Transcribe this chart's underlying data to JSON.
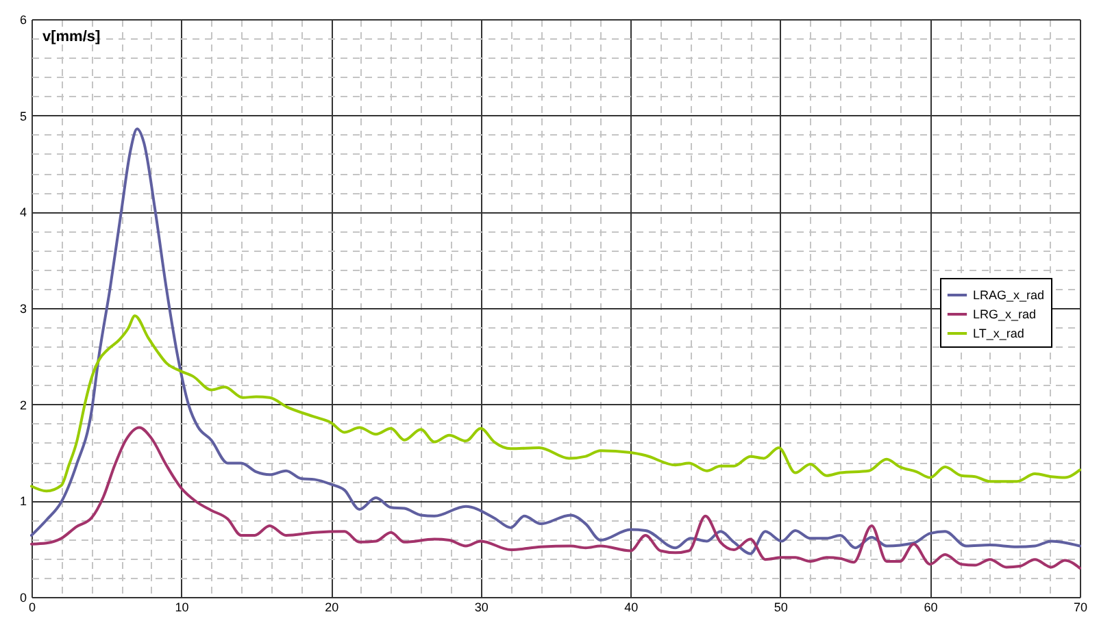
{
  "chart_data": {
    "type": "line",
    "ylabel": "v[mm/s]",
    "xlim": [
      0,
      70
    ],
    "ylim": [
      0,
      6
    ],
    "xticks": [
      0,
      {
        "value": 2,
        "label": null
      },
      {
        "value": 4,
        "label": null
      },
      {
        "value": 6,
        "label": null
      },
      {
        "value": 8,
        "label": null
      },
      10,
      {
        "value": 12,
        "label": null
      },
      {
        "value": 14,
        "label": null
      },
      {
        "value": 16,
        "label": null
      },
      {
        "value": 18,
        "label": null
      },
      20,
      {
        "value": 22,
        "label": null
      },
      {
        "value": 24,
        "label": null
      },
      {
        "value": 26,
        "label": null
      },
      {
        "value": 28,
        "label": null
      },
      30,
      {
        "value": 32,
        "label": null
      },
      {
        "value": 34,
        "label": null
      },
      {
        "value": 36,
        "label": null
      },
      {
        "value": 38,
        "label": null
      },
      40,
      {
        "value": 42,
        "label": null
      },
      {
        "value": 44,
        "label": null
      },
      {
        "value": 46,
        "label": null
      },
      {
        "value": 48,
        "label": null
      },
      50,
      {
        "value": 52,
        "label": null
      },
      {
        "value": 54,
        "label": null
      },
      {
        "value": 56,
        "label": null
      },
      {
        "value": 58,
        "label": null
      },
      60,
      {
        "value": 62,
        "label": null
      },
      {
        "value": 64,
        "label": null
      },
      {
        "value": 66,
        "label": null
      },
      {
        "value": 68,
        "label": null
      },
      70
    ],
    "yticks": [
      0,
      {
        "value": 0.2,
        "label": null
      },
      {
        "value": 0.4,
        "label": null
      },
      {
        "value": 0.6,
        "label": null
      },
      {
        "value": 0.8,
        "label": null
      },
      1,
      {
        "value": 1.2,
        "label": null
      },
      {
        "value": 1.4,
        "label": null
      },
      {
        "value": 1.6,
        "label": null
      },
      {
        "value": 1.8,
        "label": null
      },
      2,
      {
        "value": 2.2,
        "label": null
      },
      {
        "value": 2.4,
        "label": null
      },
      {
        "value": 2.6,
        "label": null
      },
      {
        "value": 2.8,
        "label": null
      },
      3,
      {
        "value": 3.2,
        "label": null
      },
      {
        "value": 3.4,
        "label": null
      },
      {
        "value": 3.6,
        "label": null
      },
      {
        "value": 3.8,
        "label": null
      },
      4,
      {
        "value": 4.2,
        "label": null
      },
      {
        "value": 4.4,
        "label": null
      },
      {
        "value": 4.6,
        "label": null
      },
      {
        "value": 4.8,
        "label": null
      },
      5,
      {
        "value": 5.2,
        "label": null
      },
      {
        "value": 5.4,
        "label": null
      },
      {
        "value": 5.6,
        "label": null
      },
      {
        "value": 5.8,
        "label": null
      },
      6
    ],
    "grid": true,
    "legend": "right",
    "line_style": "solid",
    "series": [
      {
        "name": "LRAG_x_rad",
        "color": "#5f5fa0",
        "x": [
          0,
          1,
          2,
          3,
          4,
          4.5,
          5.25,
          6,
          6.6,
          7.05,
          7.5,
          8.26,
          9,
          9.76,
          10.5,
          11.1,
          12,
          13.1,
          14,
          15,
          15.9,
          17,
          18,
          18.9,
          20,
          20.9,
          21.9,
          23,
          24,
          24.9,
          26,
          26.9,
          29,
          30.9,
          32,
          32.9,
          34,
          36,
          37,
          38,
          40,
          41,
          43,
          44,
          45.1,
          46,
          46.9,
          48,
          49,
          50.1,
          51,
          52,
          53.1,
          54,
          55,
          56.1,
          57.1,
          58.9,
          60,
          61,
          62.4,
          64,
          65.8,
          67,
          68.1,
          70
        ],
        "values": [
          0.64,
          0.8,
          0.99,
          1.37,
          1.92,
          2.5,
          3.21,
          4.01,
          4.63,
          4.86,
          4.72,
          4.01,
          3.21,
          2.5,
          1.99,
          1.77,
          1.63,
          1.39,
          1.39,
          1.3,
          1.27,
          1.31,
          1.23,
          1.22,
          1.17,
          1.11,
          0.91,
          1.03,
          0.93,
          0.92,
          0.85,
          0.84,
          0.94,
          0.82,
          0.72,
          0.84,
          0.76,
          0.85,
          0.76,
          0.59,
          0.7,
          0.69,
          0.51,
          0.61,
          0.58,
          0.68,
          0.57,
          0.45,
          0.68,
          0.58,
          0.69,
          0.61,
          0.61,
          0.64,
          0.51,
          0.62,
          0.53,
          0.56,
          0.66,
          0.68,
          0.53,
          0.54,
          0.52,
          0.53,
          0.58,
          0.53
        ]
      },
      {
        "name": "LRG_x_rad",
        "color": "#a3336b",
        "x": [
          0,
          1,
          2,
          3,
          4,
          4.8,
          5.56,
          6.3,
          7.2,
          8,
          9,
          10,
          11,
          12,
          13.1,
          14,
          14.9,
          15.9,
          17,
          18.9,
          20.9,
          21.9,
          23,
          24,
          24.9,
          26.9,
          27.9,
          29,
          30,
          32,
          34,
          36,
          37,
          38,
          40,
          41,
          42,
          43,
          43.9,
          45,
          46,
          46.9,
          48,
          49,
          50.1,
          51,
          52,
          53.1,
          54,
          54.9,
          56.1,
          57.1,
          58,
          58.9,
          60,
          61,
          62.1,
          63,
          64,
          65.1,
          66,
          67,
          68.1,
          69,
          70
        ],
        "values": [
          0.55,
          0.56,
          0.61,
          0.73,
          0.82,
          1.04,
          1.37,
          1.63,
          1.76,
          1.65,
          1.37,
          1.13,
          0.99,
          0.9,
          0.81,
          0.64,
          0.64,
          0.74,
          0.64,
          0.67,
          0.68,
          0.57,
          0.58,
          0.67,
          0.57,
          0.6,
          0.59,
          0.53,
          0.58,
          0.49,
          0.52,
          0.53,
          0.51,
          0.53,
          0.48,
          0.64,
          0.48,
          0.46,
          0.48,
          0.84,
          0.57,
          0.49,
          0.6,
          0.39,
          0.41,
          0.41,
          0.37,
          0.41,
          0.4,
          0.36,
          0.74,
          0.37,
          0.37,
          0.55,
          0.34,
          0.44,
          0.34,
          0.33,
          0.39,
          0.31,
          0.32,
          0.39,
          0.31,
          0.38,
          0.3
        ]
      },
      {
        "name": "LT_x_rad",
        "color": "#99cc00",
        "x": [
          0,
          1,
          2,
          2.5,
          3,
          3.6,
          4,
          4.5,
          5.1,
          5.86,
          6.46,
          6.9,
          7.8,
          8.4,
          9,
          9.9,
          10.8,
          12,
          12.9,
          14.1,
          15,
          15.9,
          17.1,
          18.9,
          20,
          20.9,
          21.9,
          23,
          24,
          24.9,
          26,
          26.9,
          27.9,
          29,
          30,
          30.9,
          32,
          33.9,
          35.9,
          37,
          38,
          40,
          41,
          43,
          43.9,
          45.1,
          46,
          46.9,
          48,
          48.9,
          49.9,
          51,
          52,
          53.1,
          54,
          55.9,
          57.1,
          58,
          59.1,
          60,
          61,
          62.1,
          63,
          64,
          65.8,
          67,
          68.1,
          69,
          70
        ],
        "values": [
          1.15,
          1.1,
          1.16,
          1.37,
          1.6,
          2.03,
          2.27,
          2.46,
          2.57,
          2.67,
          2.79,
          2.92,
          2.69,
          2.55,
          2.43,
          2.35,
          2.29,
          2.15,
          2.18,
          2.07,
          2.08,
          2.07,
          1.97,
          1.87,
          1.81,
          1.71,
          1.76,
          1.69,
          1.75,
          1.63,
          1.74,
          1.61,
          1.68,
          1.62,
          1.75,
          1.61,
          1.54,
          1.55,
          1.44,
          1.46,
          1.52,
          1.5,
          1.47,
          1.37,
          1.39,
          1.31,
          1.36,
          1.36,
          1.46,
          1.44,
          1.55,
          1.29,
          1.38,
          1.26,
          1.29,
          1.31,
          1.43,
          1.35,
          1.3,
          1.24,
          1.35,
          1.26,
          1.25,
          1.2,
          1.2,
          1.28,
          1.25,
          1.24,
          1.32
        ]
      }
    ]
  }
}
